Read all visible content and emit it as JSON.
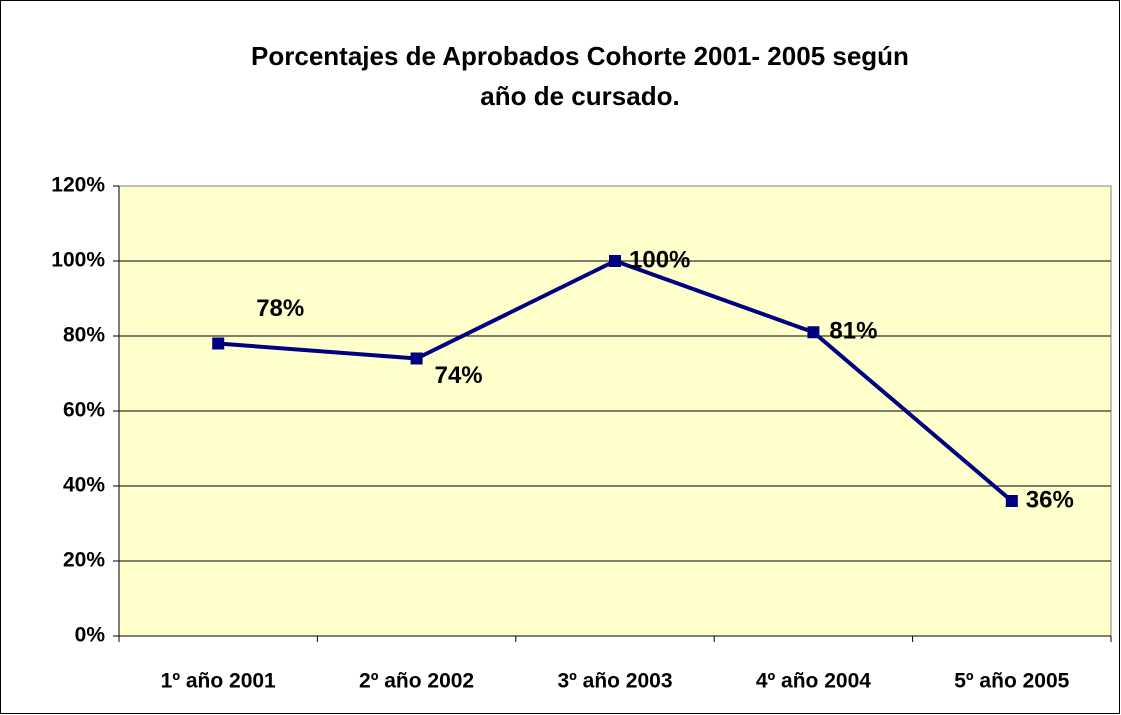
{
  "chart_data": {
    "type": "line",
    "title": [
      "Porcentajes de  Aprobados Cohorte 2001- 2005 según",
      "año de cursado."
    ],
    "categories": [
      "1º año 2001",
      "2º año 2002",
      "3º año 2003",
      "4º año 2004",
      "5º año 2005"
    ],
    "values": [
      78,
      74,
      100,
      81,
      36
    ],
    "value_labels": [
      "78%",
      "74%",
      "100%",
      "81%",
      "36%"
    ],
    "color": "#000080",
    "ylim": [
      0,
      120
    ],
    "yticks": [
      {
        "value": 0,
        "label": "0%"
      },
      {
        "value": 20,
        "label": "20%"
      },
      {
        "value": 40,
        "label": "40%"
      },
      {
        "value": 60,
        "label": "60%"
      },
      {
        "value": 80,
        "label": "80%"
      },
      {
        "value": 100,
        "label": "100%"
      },
      {
        "value": 120,
        "label": "120%"
      }
    ],
    "grid": true
  }
}
